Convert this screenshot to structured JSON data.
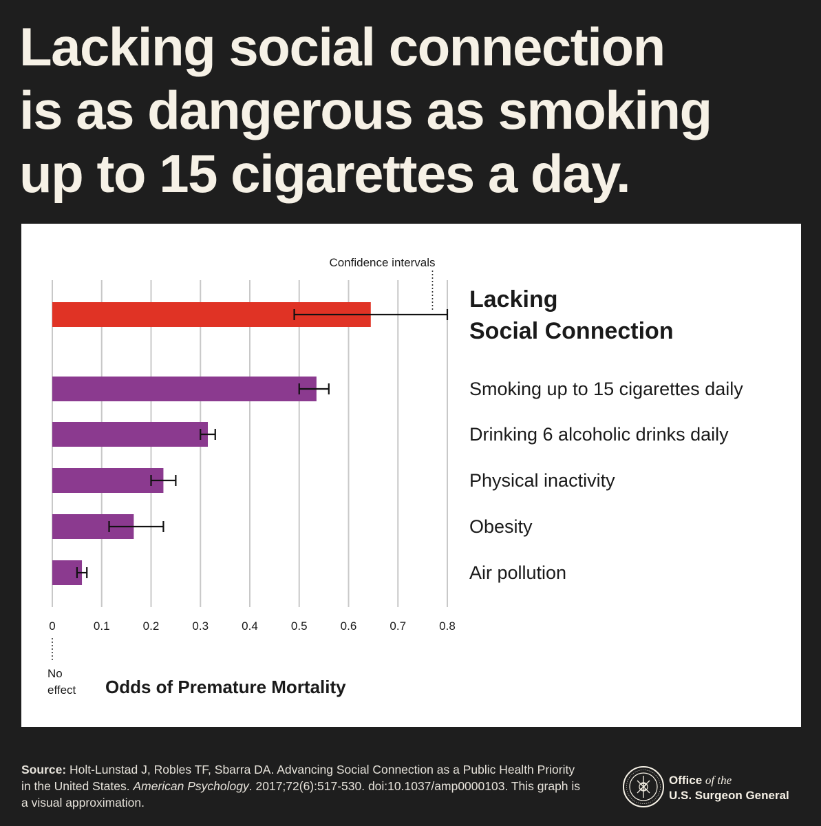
{
  "headline": {
    "line1": "Lacking social connection",
    "line2": "is as dangerous as smoking",
    "line3": "up to 15 cigarettes a day."
  },
  "chart_data": {
    "type": "bar",
    "orientation": "horizontal",
    "categories": [
      "Lacking Social Connection",
      "Smoking up to 15 cigarettes daily",
      "Drinking 6 alcoholic drinks daily",
      "Physical inactivity",
      "Obesity",
      "Air pollution"
    ],
    "values": [
      0.645,
      0.535,
      0.315,
      0.225,
      0.165,
      0.06
    ],
    "ci_low": [
      0.49,
      0.5,
      0.3,
      0.2,
      0.115,
      0.05
    ],
    "ci_high": [
      0.8,
      0.56,
      0.33,
      0.25,
      0.225,
      0.07
    ],
    "highlight_index": 0,
    "highlight_label_lines": [
      "Lacking",
      "Social Connection"
    ],
    "colors": {
      "highlight": "#e03325",
      "default": "#8b3a8f",
      "grid": "#c8c8c8",
      "text": "#1a1a1a"
    },
    "xlim": [
      0,
      0.8
    ],
    "xticks": [
      "0",
      "0.1",
      "0.2",
      "0.3",
      "0.4",
      "0.5",
      "0.6",
      "0.7",
      "0.8"
    ],
    "xlabel": "Odds of Premature Mortality",
    "annotations": {
      "confidence_intervals": "Confidence intervals",
      "no_effect": "No effect"
    },
    "grid": "vertical"
  },
  "source": {
    "label": "Source:",
    "text_a": "Holt-Lunstad J, Robles TF, Sbarra DA. Advancing Social Connection as a Public Health Priority in the United States.",
    "journal": "American Psychology",
    "text_b": ". 2017;72(6):517-530. doi:10.1037/amp0000103. This graph is a visual approximation."
  },
  "logo": {
    "office": "Office",
    "of_the": "of the",
    "name": "U.S. Surgeon General"
  }
}
